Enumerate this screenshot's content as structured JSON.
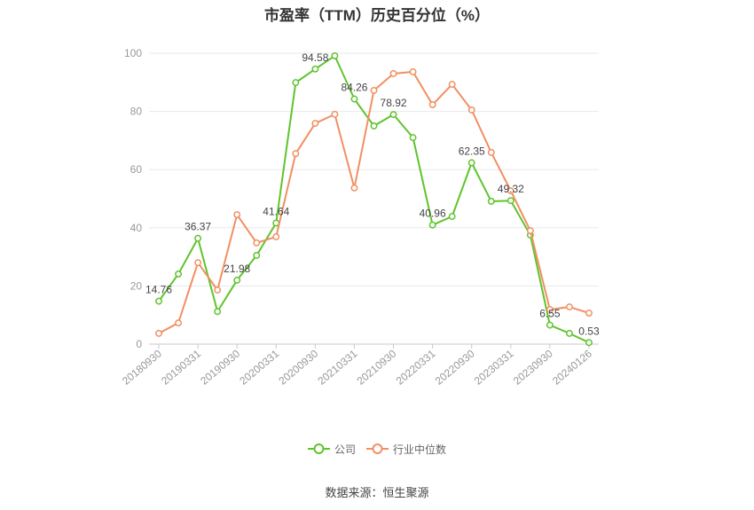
{
  "source": "数据来源：恒生聚源",
  "chart_data": {
    "type": "line",
    "title": "市盈率（TTM）历史百分位（%）",
    "categories": [
      "20180930",
      "",
      "20190331",
      "",
      "20190930",
      "",
      "20200331",
      "",
      "20200930",
      "",
      "20210331",
      "",
      "20210930",
      "",
      "20220331",
      "",
      "20220930",
      "",
      "20230331",
      "",
      "20230930",
      "",
      "20240126"
    ],
    "ylim": [
      0,
      100
    ],
    "yticks": [
      0,
      20,
      40,
      60,
      80,
      100
    ],
    "grid": true,
    "legend_position": "bottom",
    "series": [
      {
        "name": "公司",
        "color": "#5fc42c",
        "values": [
          14.76,
          24.1,
          36.37,
          11.2,
          21.98,
          30.5,
          41.64,
          89.9,
          94.58,
          99.1,
          84.26,
          75.0,
          78.92,
          71.0,
          40.96,
          43.9,
          62.35,
          49.1,
          49.32,
          37.5,
          6.55,
          3.7,
          0.53
        ],
        "data_labels": [
          "14.76",
          null,
          "36.37",
          null,
          "21.98",
          null,
          "41.64",
          null,
          "94.58",
          null,
          "84.26",
          null,
          "78.92",
          null,
          "40.96",
          null,
          "62.35",
          null,
          "49.32",
          null,
          "6.55",
          null,
          "0.53"
        ]
      },
      {
        "name": "行业中位数",
        "color": "#f28f63",
        "values": [
          3.7,
          7.3,
          28.0,
          18.6,
          44.5,
          34.8,
          36.9,
          65.5,
          75.9,
          79.0,
          53.7,
          87.2,
          93.0,
          93.6,
          82.3,
          89.3,
          80.5,
          65.9,
          52.7,
          39.0,
          11.9,
          12.8,
          10.7
        ]
      }
    ]
  }
}
